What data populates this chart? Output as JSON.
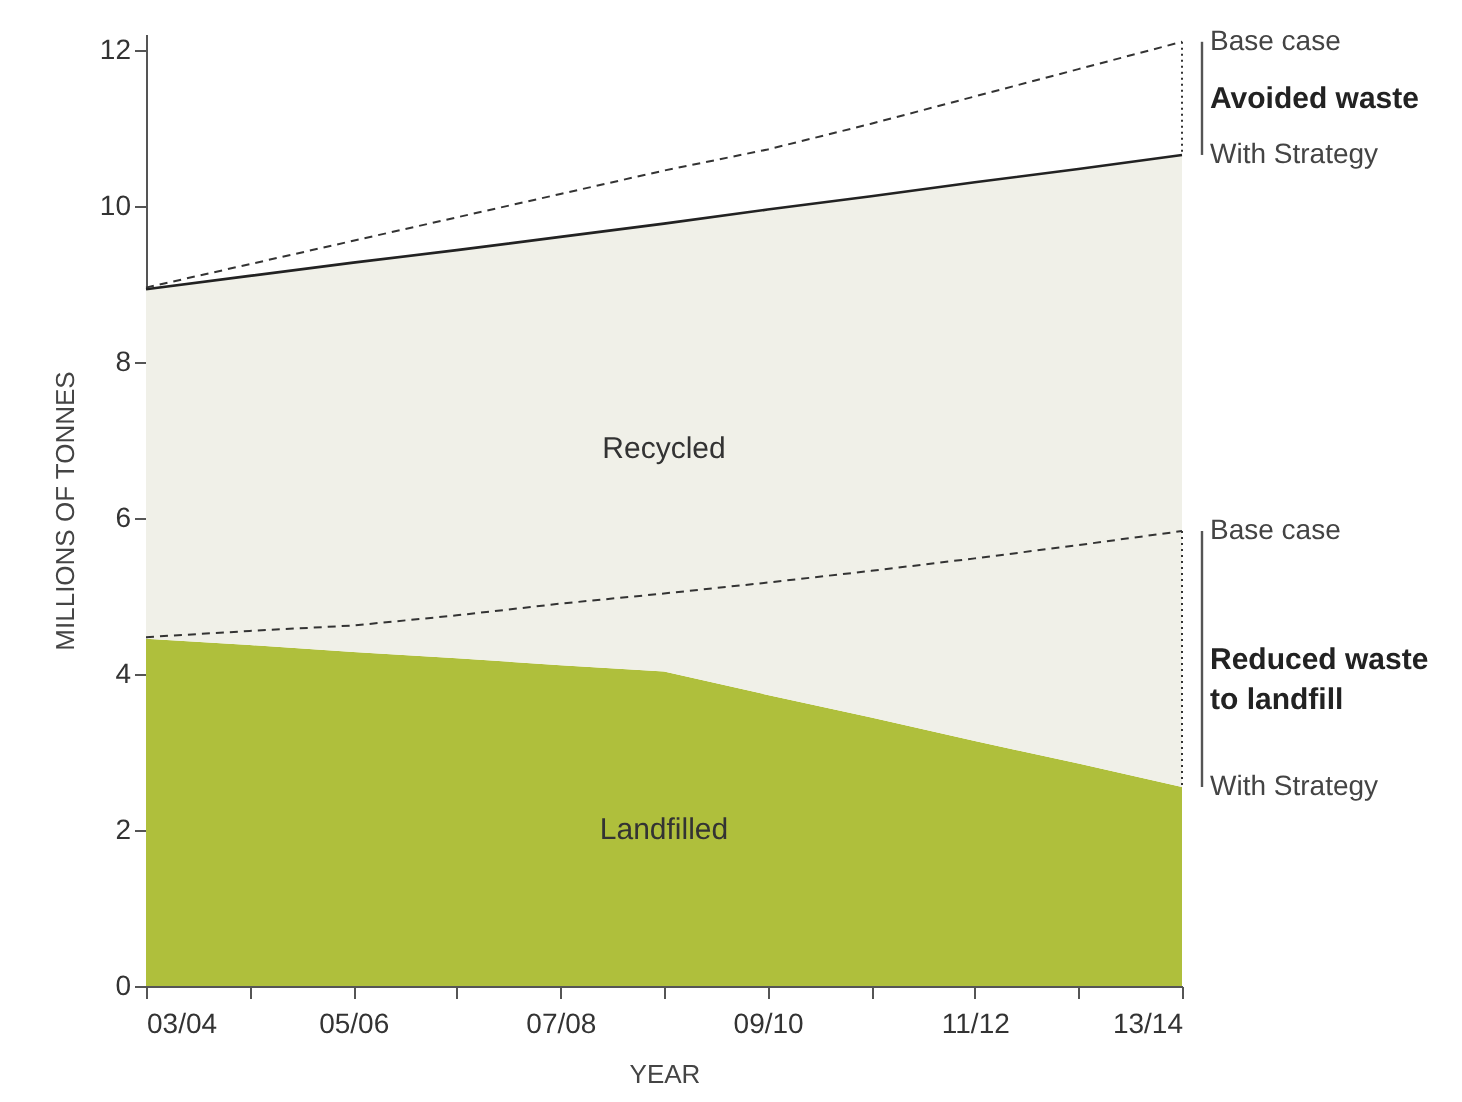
{
  "chart_data": {
    "type": "area",
    "stacked": true,
    "xlabel": "YEAR",
    "ylabel": "MILLIONS OF TONNES",
    "categories": [
      "03/04",
      null,
      "05/06",
      null,
      "07/08",
      null,
      "09/10",
      null,
      "11/12",
      null,
      "13/14"
    ],
    "ylim": [
      0,
      12.2
    ],
    "yticks": [
      0,
      2,
      4,
      6,
      8,
      10,
      12
    ],
    "grid": false,
    "series": [
      {
        "name": "Landfilled",
        "color": "#afbf3c",
        "values": [
          4.45,
          4.37,
          4.28,
          4.2,
          4.11,
          4.03,
          3.73,
          3.44,
          3.14,
          2.85,
          2.55
        ]
      },
      {
        "name": "Recycled",
        "color": "#f0f0e8",
        "line_style": "solid",
        "values": [
          4.48,
          4.73,
          4.99,
          5.23,
          5.49,
          5.74,
          6.22,
          6.68,
          7.16,
          7.62,
          8.1
        ]
      },
      {
        "type": "line",
        "color": "#333333",
        "line_style": "dashed",
        "values": [
          8.95,
          9.25,
          9.55,
          9.85,
          10.15,
          10.45,
          10.72,
          11.05,
          11.4,
          11.75,
          12.1
        ]
      },
      {
        "type": "line",
        "color": "#333333",
        "line_style": "dashed",
        "values": [
          4.47,
          4.55,
          4.62,
          4.75,
          4.9,
          5.03,
          5.17,
          5.32,
          5.48,
          5.65,
          5.83
        ]
      }
    ],
    "annotations": [
      "Base case",
      "Avoided waste",
      "With Strategy",
      "Base case",
      "Reduced waste\nto landfill",
      "With Strategy"
    ]
  }
}
